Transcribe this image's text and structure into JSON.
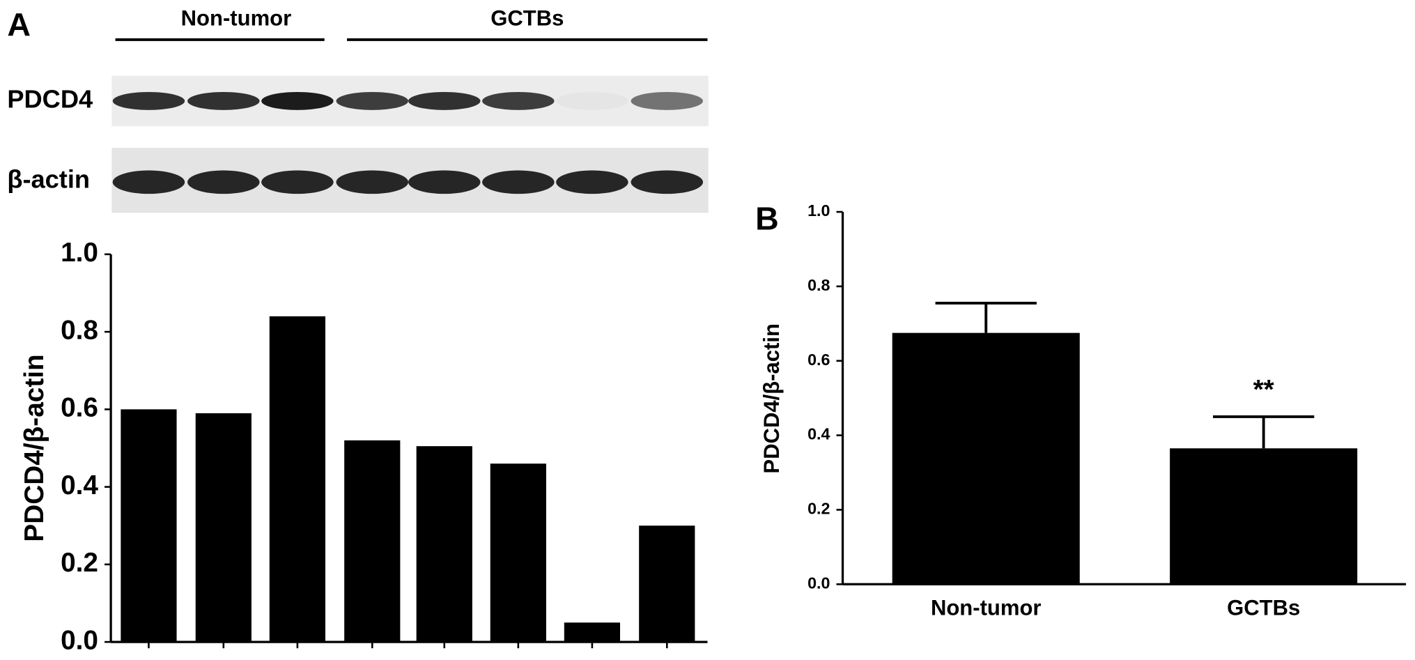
{
  "chart_data": [
    {
      "type": "bar",
      "panel_label": "A",
      "y_label": "PDCD4/β-actin",
      "categories": [
        null,
        null,
        null,
        null,
        null,
        null,
        null,
        null
      ],
      "values": [
        0.6,
        0.59,
        0.84,
        0.52,
        0.505,
        0.46,
        0.05,
        0.3
      ],
      "color": "#000000",
      "ylim": [
        0,
        1.0
      ],
      "yticks": [
        {
          "value": 0,
          "label": "0.0"
        },
        0.2,
        0.4,
        0.6,
        0.8,
        {
          "value": 1,
          "label": "1.0"
        }
      ]
    },
    {
      "type": "bar",
      "panel_label": "B",
      "y_label": "PDCD4/β-actin",
      "categories": [
        "Non-tumor",
        "GCTBs"
      ],
      "values": [
        0.675,
        0.365
      ],
      "errors": [
        0.08,
        0.085
      ],
      "annotations": [
        null,
        "**"
      ],
      "color": "#000000",
      "ylim": [
        0,
        1.0
      ],
      "yticks": [
        {
          "value": 0,
          "label": "0.0"
        },
        0.2,
        0.4,
        0.6,
        0.8,
        {
          "value": 1,
          "label": "1.0"
        }
      ]
    }
  ],
  "blot": {
    "groups": [
      "Non-tumor",
      "GCTBs"
    ],
    "rows": [
      "PDCD4",
      "β-actin"
    ]
  }
}
